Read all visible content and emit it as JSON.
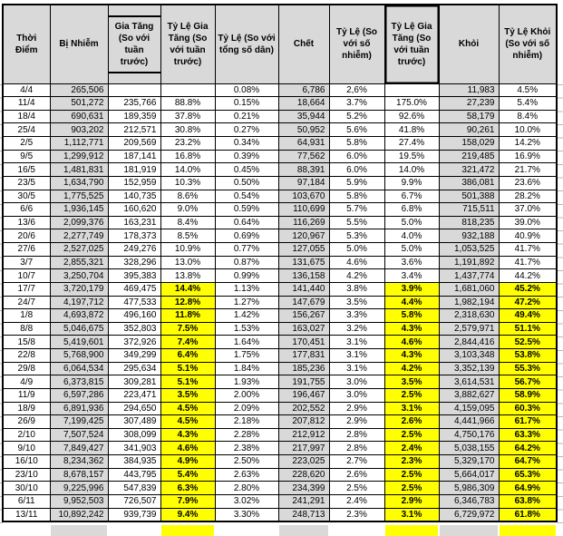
{
  "table": {
    "columns": [
      "Thời Điểm",
      "Bị Nhiễm",
      "Gia Tăng (So với tuần trước)",
      "Tỷ Lệ Gia Tăng (So với tuần trước)",
      "Tỷ Lệ (So với tổng số dân)",
      "Chết",
      "Tỷ Lệ (So với số nhiễm)",
      "Tỷ Lệ Gia Tăng (So với tuần trước)",
      "Khỏi",
      "Tỷ Lệ Khỏi (So với số nhiễm)"
    ],
    "rows": [
      [
        "4/4",
        "265,506",
        "",
        "",
        "0.08%",
        "6,786",
        "2,6%",
        "",
        "11,983",
        "4.5%"
      ],
      [
        "11/4",
        "501,272",
        "235,766",
        "88.8%",
        "0.15%",
        "18,664",
        "3.7%",
        "175.0%",
        "27,239",
        "5.4%"
      ],
      [
        "18/4",
        "690,631",
        "189,359",
        "37.8%",
        "0.21%",
        "35,944",
        "5.2%",
        "92.6%",
        "58,179",
        "8.4%"
      ],
      [
        "25/4",
        "903,202",
        "212,571",
        "30.8%",
        "0.27%",
        "50,952",
        "5.6%",
        "41.8%",
        "90,261",
        "10.0%"
      ],
      [
        "2/5",
        "1,112,771",
        "209,569",
        "23.2%",
        "0.34%",
        "64,931",
        "5.8%",
        "27.4%",
        "158,029",
        "14.2%"
      ],
      [
        "9/5",
        "1,299,912",
        "187,141",
        "16.8%",
        "0.39%",
        "77,562",
        "6.0%",
        "19.5%",
        "219,485",
        "16.9%"
      ],
      [
        "16/5",
        "1,481,831",
        "181,919",
        "14.0%",
        "0.45%",
        "88,391",
        "6.0%",
        "14.0%",
        "321,472",
        "21.7%"
      ],
      [
        "23/5",
        "1,634,790",
        "152,959",
        "10.3%",
        "0.50%",
        "97,184",
        "5.9%",
        "9.9%",
        "386,081",
        "23.6%"
      ],
      [
        "30/5",
        "1,775,525",
        "140,735",
        "8.6%",
        "0.54%",
        "103,670",
        "5.8%",
        "6.7%",
        "501,388",
        "28.2%"
      ],
      [
        "6/6",
        "1,936,145",
        "160,620",
        "9.0%",
        "0.59%",
        "110,699",
        "5.7%",
        "6.8%",
        "715,511",
        "37.0%"
      ],
      [
        "13/6",
        "2,099,376",
        "163,231",
        "8.4%",
        "0.64%",
        "116,269",
        "5.5%",
        "5.0%",
        "818,235",
        "39.0%"
      ],
      [
        "20/6",
        "2,277,749",
        "178,373",
        "8.5%",
        "0.69%",
        "120,967",
        "5.3%",
        "4.0%",
        "932,188",
        "40.9%"
      ],
      [
        "27/6",
        "2,527,025",
        "249,276",
        "10.9%",
        "0.77%",
        "127,055",
        "5.0%",
        "5.0%",
        "1,053,525",
        "41.7%"
      ],
      [
        "3/7",
        "2,855,321",
        "328,296",
        "13.0%",
        "0.87%",
        "131,675",
        "4.6%",
        "3.6%",
        "1,191,892",
        "41.7%"
      ],
      [
        "10/7",
        "3,250,704",
        "395,383",
        "13.8%",
        "0.99%",
        "136,158",
        "4.2%",
        "3.4%",
        "1,437,774",
        "44.2%"
      ],
      [
        "17/7",
        "3,720,179",
        "469,475",
        "14.4%",
        "1.13%",
        "141,440",
        "3.8%",
        "3.9%",
        "1,681,060",
        "45.2%"
      ],
      [
        "24/7",
        "4,197,712",
        "477,533",
        "12.8%",
        "1.27%",
        "147,679",
        "3.5%",
        "4.4%",
        "1,982,194",
        "47.2%"
      ],
      [
        "1/8",
        "4,693,872",
        "496,160",
        "11.8%",
        "1.42%",
        "156,267",
        "3.3%",
        "5.8%",
        "2,318,630",
        "49.4%"
      ],
      [
        "8/8",
        "5,046,675",
        "352,803",
        "7.5%",
        "1.53%",
        "163,027",
        "3.2%",
        "4.3%",
        "2,579,971",
        "51.1%"
      ],
      [
        "15/8",
        "5,419,601",
        "372,926",
        "7.4%",
        "1.64%",
        "170,451",
        "3.1%",
        "4.6%",
        "2,844,416",
        "52.5%"
      ],
      [
        "22/8",
        "5,768,900",
        "349,299",
        "6.4%",
        "1.75%",
        "177,831",
        "3.1%",
        "4.3%",
        "3,103,348",
        "53.8%"
      ],
      [
        "29/8",
        "6,064,534",
        "295,634",
        "5.1%",
        "1.84%",
        "185,236",
        "3.1%",
        "4.2%",
        "3,352,139",
        "55.3%"
      ],
      [
        "4/9",
        "6,373,815",
        "309,281",
        "5.1%",
        "1.93%",
        "191,755",
        "3.0%",
        "3.5%",
        "3,614,531",
        "56.7%"
      ],
      [
        "11/9",
        "6,597,286",
        "223,471",
        "3.5%",
        "2.00%",
        "196,467",
        "3.0%",
        "2.5%",
        "3,882,627",
        "58.9%"
      ],
      [
        "18/9",
        "6,891,936",
        "294,650",
        "4.5%",
        "2.09%",
        "202,552",
        "2.9%",
        "3.1%",
        "4,159,095",
        "60.3%"
      ],
      [
        "26/9",
        "7,199,425",
        "307,489",
        "4.5%",
        "2.18%",
        "207,812",
        "2.9%",
        "2.6%",
        "4,441,966",
        "61.7%"
      ],
      [
        "2/10",
        "7,507,524",
        "308,099",
        "4.3%",
        "2.28%",
        "212,912",
        "2.8%",
        "2.5%",
        "4,750,176",
        "63.3%"
      ],
      [
        "9/10",
        "7,849,427",
        "341,903",
        "4.6%",
        "2.38%",
        "217,997",
        "2.8%",
        "2.4%",
        "5,038,155",
        "64.2%"
      ],
      [
        "16/10",
        "8,234,362",
        "384,935",
        "4.9%",
        "2.50%",
        "223,025",
        "2.7%",
        "2.3%",
        "5,329,170",
        "64.7%"
      ],
      [
        "23/10",
        "8,678,157",
        "443,795",
        "5.4%",
        "2.63%",
        "228,620",
        "2.6%",
        "2.5%",
        "5,664,017",
        "65.3%"
      ],
      [
        "30/10",
        "9,225,996",
        "547,839",
        "6.3%",
        "2.80%",
        "234,399",
        "2.5%",
        "2.5%",
        "5,986,309",
        "64.9%"
      ],
      [
        "6/11",
        "9,952,503",
        "726,507",
        "7.9%",
        "3.02%",
        "241,291",
        "2.4%",
        "2.9%",
        "6,346,783",
        "63.8%"
      ],
      [
        "13/11",
        "10,892,242",
        "939,739",
        "9.4%",
        "3.30%",
        "248,713",
        "2.3%",
        "3.1%",
        "6,729,972",
        "61.8%"
      ]
    ],
    "first_highlighted_row": "17/7"
  },
  "colors": {
    "shaded_cell": "#d9d9d9",
    "highlight_cell": "#ffff00",
    "grid_border": "#000000",
    "background": "#ffffff"
  }
}
